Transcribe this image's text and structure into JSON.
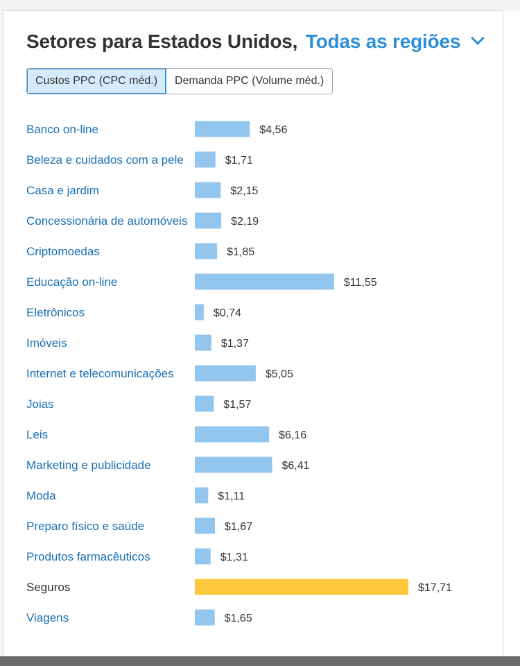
{
  "header": {
    "title_prefix": "Setores para Estados Unidos,",
    "region_label": "Todas as regiões"
  },
  "toggle": {
    "options": [
      "Custos PPC (CPC méd.)",
      "Demanda PPC (Volume méd.)"
    ],
    "active_index": 0
  },
  "colors": {
    "bar_default": "#92c6ef",
    "bar_highlight": "#ffc83d",
    "link_text": "#1a6fb3",
    "plain_text": "#333333"
  },
  "chart_data": {
    "type": "bar",
    "orientation": "horizontal",
    "title": "",
    "xlabel": "",
    "ylabel": "",
    "xlim": [
      0,
      17.71
    ],
    "grid": false,
    "highlight_category": "Seguros",
    "categories": [
      "Banco on-line",
      "Beleza e cuidados com a pele",
      "Casa e jardim",
      "Concessionária de automóveis",
      "Criptomoedas",
      "Educação on-line",
      "Eletrônicos",
      "Imóveis",
      "Internet e telecomunicações",
      "Joias",
      "Leis",
      "Marketing e publicidade",
      "Moda",
      "Preparo físico e saúde",
      "Produtos farmacêuticos",
      "Seguros",
      "Viagens"
    ],
    "values": [
      4.56,
      1.71,
      2.15,
      2.19,
      1.85,
      11.55,
      0.74,
      1.37,
      5.05,
      1.57,
      6.16,
      6.41,
      1.11,
      1.67,
      1.31,
      17.71,
      1.65
    ],
    "value_labels": [
      "$4,56",
      "$1,71",
      "$2,15",
      "$2,19",
      "$1,85",
      "$11,55",
      "$0,74",
      "$1,37",
      "$5,05",
      "$1,57",
      "$6,16",
      "$6,41",
      "$1,11",
      "$1,67",
      "$1,31",
      "$17,71",
      "$1,65"
    ]
  }
}
